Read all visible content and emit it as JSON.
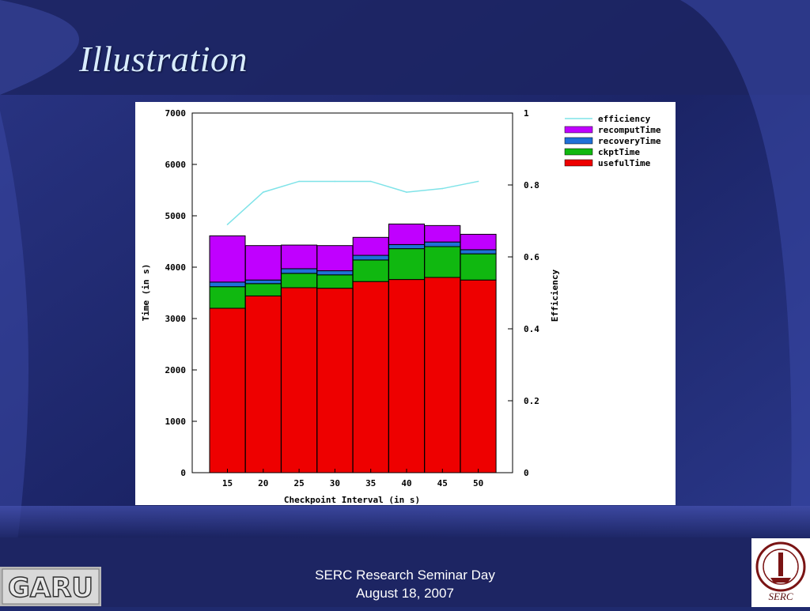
{
  "slide": {
    "title": "Illustration",
    "footer_line1": "SERC Research Seminar Day",
    "footer_line2": "August 18, 2007",
    "logo_left_text": "GARU",
    "logo_right_text": "SERC"
  },
  "colors": {
    "efficiency": "#7fe3e8",
    "recomputTime": "#c000ff",
    "recoveryTime": "#1f70d8",
    "ckptTime": "#10b810",
    "usefulTime": "#ee0000"
  },
  "chart_data": {
    "type": "bar",
    "stacked": true,
    "categories": [
      "15",
      "20",
      "25",
      "30",
      "35",
      "40",
      "45",
      "50"
    ],
    "series": [
      {
        "name": "usefulTime",
        "values": [
          3200,
          3440,
          3600,
          3590,
          3720,
          3760,
          3800,
          3750
        ]
      },
      {
        "name": "ckptTime",
        "values": [
          420,
          240,
          280,
          260,
          420,
          600,
          600,
          510
        ]
      },
      {
        "name": "recoveryTime",
        "values": [
          90,
          70,
          90,
          80,
          90,
          80,
          90,
          80
        ]
      },
      {
        "name": "recomputTime",
        "values": [
          900,
          670,
          460,
          490,
          350,
          400,
          320,
          300
        ]
      }
    ],
    "line_series": {
      "name": "efficiency",
      "values": [
        0.69,
        0.78,
        0.81,
        0.81,
        0.81,
        0.78,
        0.79,
        0.81
      ]
    },
    "xlabel": "Checkpoint Interval (in s)",
    "ylabel": "Time (in s)",
    "y2label": "Efficiency",
    "ylim": [
      0,
      7000
    ],
    "y2lim": [
      0,
      1
    ],
    "yticks": [
      "0",
      "1000",
      "2000",
      "3000",
      "4000",
      "5000",
      "6000",
      "7000"
    ],
    "y2ticks": [
      "0",
      "0.2",
      "0.4",
      "0.6",
      "0.8",
      "1"
    ],
    "legend": {
      "placement": "top-right",
      "items": [
        "efficiency",
        "recomputTime",
        "recoveryTime",
        "ckptTime",
        "usefulTime"
      ]
    },
    "grid": false
  }
}
